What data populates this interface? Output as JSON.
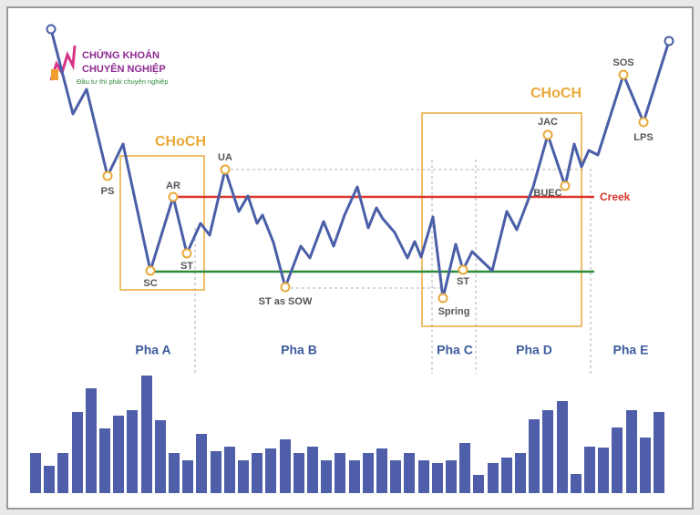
{
  "logo": {
    "line1": "CHỨNG KHOÁN",
    "line2": "CHUYÊN NGHIỆP",
    "tagline": "Đầu tư thì phải chuyên nghiệp"
  },
  "choch": [
    "CHoCH",
    "CHoCH"
  ],
  "creek": "Creek",
  "events": [
    "PS",
    "SC",
    "AR",
    "ST",
    "UA",
    "ST as SOW",
    "Spring",
    "ST",
    "JAC",
    "BUEC",
    "SOS",
    "LPS"
  ],
  "phases": [
    "Pha A",
    "Pha B",
    "Pha C",
    "Pha D",
    "Pha E"
  ]
}
